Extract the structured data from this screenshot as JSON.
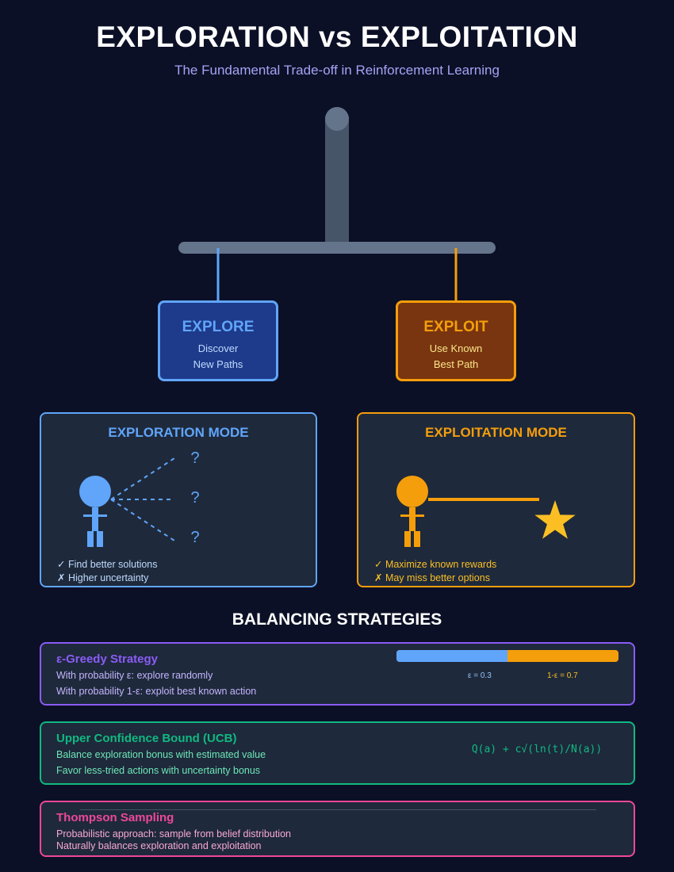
{
  "header": {
    "title": "EXPLORATION vs EXPLOITATION",
    "subtitle": "The Fundamental Trade-off in Reinforcement Learning"
  },
  "choices": {
    "explore": {
      "title": "EXPLORE",
      "line1": "Discover",
      "line2": "New Paths"
    },
    "exploit": {
      "title": "EXPLOIT",
      "line1": "Use Known",
      "line2": "Best Path"
    }
  },
  "modes": {
    "exploration": {
      "title": "EXPLORATION MODE",
      "unknown_marks": [
        "?",
        "?",
        "?"
      ],
      "pro": "✓ Find better solutions",
      "con": "✗ Higher uncertainty"
    },
    "exploitation": {
      "title": "EXPLOITATION MODE",
      "pro": "✓ Maximize known rewards",
      "con": "✗ May miss better options"
    }
  },
  "strategies_heading": "BALANCING STRATEGIES",
  "strategies": {
    "epsilon_greedy": {
      "name": "ε-Greedy Strategy",
      "line1": "With probability ε: explore randomly",
      "line2": "With probability 1-ε: exploit best known action",
      "explore_fraction": 0.3,
      "explore_label": "ε = 0.3",
      "exploit_label": "1-ε = 0.7"
    },
    "ucb": {
      "name": "Upper Confidence Bound (UCB)",
      "line1": "Balance exploration bonus with estimated value",
      "line2": "Favor less-tried actions with uncertainty bonus",
      "formula": "Q(a) + c√(ln(t)/N(a))"
    },
    "thompson": {
      "name": "Thompson Sampling",
      "line1": "Probabilistic approach: sample from belief distribution",
      "line2": "Naturally balances exploration and exploitation"
    }
  },
  "colors": {
    "background": "#0b1026",
    "explore": "#60a5fa",
    "exploit": "#f59e0b",
    "explore_fill": "#1e3a8a",
    "exploit_fill": "#78350f",
    "epsilon": "#8b5cf6",
    "ucb": "#10b981",
    "thompson": "#ec4899",
    "star": "#fbbf24"
  }
}
